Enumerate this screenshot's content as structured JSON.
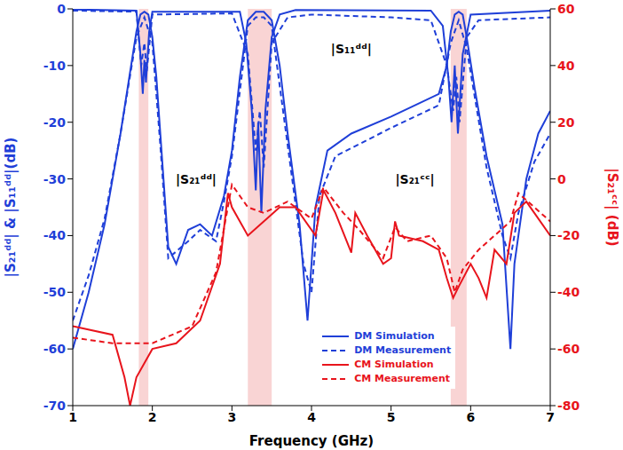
{
  "chart_data": {
    "type": "line",
    "x_label": "Frequency (GHz)",
    "y_label": "|S₂₁ᵈᵈ| & |S₁₁ᵈᵈ|(dB)",
    "y2_label": "|S₂₁ᶜᶜ| (dB)",
    "xlim": [
      1,
      7
    ],
    "xticks": [
      1,
      2,
      3,
      4,
      5,
      6,
      7
    ],
    "ylim": [
      -70,
      0
    ],
    "yticks": [
      -70,
      -60,
      -50,
      -40,
      -30,
      -20,
      -10,
      0
    ],
    "y2lim": [
      -80,
      60
    ],
    "y2ticks": [
      -80,
      -60,
      -40,
      -20,
      0,
      20,
      40,
      60
    ],
    "grid": false,
    "legend": "lower right",
    "bands": [
      [
        1.83,
        1.95
      ],
      [
        3.2,
        3.5
      ],
      [
        5.75,
        5.95
      ]
    ],
    "annotations": [
      {
        "text": "|S₂₁ᵈᵈ|",
        "x": 2.55,
        "y": -30
      },
      {
        "text": "|S₁₁ᵈᵈ|",
        "x": 4.5,
        "y": -7
      },
      {
        "text": "|S₂₁ᶜᶜ|",
        "x": 5.3,
        "y": -30
      }
    ],
    "series": [
      {
        "name": "DM Simulation",
        "color": "#1f3fd8",
        "line_style": "solid",
        "x": [
          1.0,
          1.2,
          1.4,
          1.5,
          1.6,
          1.7,
          1.8,
          1.85,
          1.9,
          1.95,
          2.0,
          2.05,
          2.1,
          2.2,
          2.3,
          2.45,
          2.6,
          2.75,
          2.9,
          3.0,
          3.1,
          3.2,
          3.3,
          3.4,
          3.5,
          3.6,
          3.7,
          3.85,
          3.95,
          4.05,
          4.2,
          4.5,
          5.0,
          5.3,
          5.6,
          5.7,
          5.75,
          5.8,
          5.85,
          5.9,
          5.95,
          6.05,
          6.2,
          6.4,
          6.5,
          6.55,
          6.7,
          6.85,
          7.0
        ],
        "values": [
          -60,
          -50,
          -38,
          -30,
          -22,
          -13,
          -4,
          -1,
          -0.5,
          -1,
          -5,
          -12,
          -22,
          -42,
          -45,
          -39,
          -38,
          -40,
          -33,
          -25,
          -12,
          -2,
          -0.5,
          -0.5,
          -2,
          -10,
          -22,
          -38,
          -55,
          -35,
          -25,
          -22,
          -19,
          -17,
          -15,
          -10,
          -4,
          -1,
          -0.5,
          -1,
          -5,
          -14,
          -26,
          -38,
          -60,
          -45,
          -30,
          -22,
          -18
        ]
      },
      {
        "name": "DM Measurement",
        "color": "#1f3fd8",
        "line_style": "dashed",
        "x": [
          1.0,
          1.2,
          1.4,
          1.6,
          1.8,
          1.9,
          2.0,
          2.1,
          2.2,
          2.45,
          2.6,
          2.8,
          2.9,
          3.0,
          3.2,
          3.3,
          3.4,
          3.5,
          3.7,
          3.9,
          4.0,
          4.1,
          4.3,
          5.0,
          5.6,
          5.75,
          5.85,
          5.95,
          6.2,
          6.4,
          6.5,
          6.6,
          6.8,
          7.0
        ],
        "values": [
          -55,
          -47,
          -37,
          -22,
          -5,
          -1.5,
          -6,
          -24,
          -44,
          -41,
          -39,
          -41,
          -34,
          -26,
          -3,
          -1.5,
          -1.5,
          -3,
          -24,
          -45,
          -50,
          -33,
          -26,
          -21,
          -17,
          -6,
          -2,
          -7,
          -28,
          -40,
          -44,
          -36,
          -27,
          -22
        ]
      },
      {
        "name": "DM Simulation",
        "color": "#1f3fd8",
        "line_style": "solid",
        "x": [
          1.0,
          1.8,
          1.85,
          1.88,
          1.9,
          1.92,
          1.96,
          2.0,
          3.1,
          3.18,
          3.25,
          3.3,
          3.33,
          3.37,
          3.42,
          3.5,
          3.6,
          3.8,
          5.5,
          5.65,
          5.72,
          5.76,
          5.8,
          5.84,
          5.9,
          6.0,
          7.0
        ],
        "values": [
          -0.1,
          -0.3,
          -8,
          -15,
          -9,
          -13,
          -4,
          -0.5,
          -0.5,
          -6,
          -18,
          -32,
          -20,
          -36,
          -18,
          -5,
          -1,
          -0.2,
          -0.3,
          -3,
          -12,
          -20,
          -10,
          -22,
          -8,
          -1,
          -0.3
        ]
      },
      {
        "name": "DM Measurement",
        "color": "#1f3fd8",
        "line_style": "dashed",
        "x": [
          1.0,
          1.8,
          1.86,
          1.9,
          1.93,
          2.0,
          3.0,
          3.2,
          3.3,
          3.35,
          3.4,
          3.5,
          3.7,
          4.0,
          5.0,
          5.5,
          5.7,
          5.78,
          5.82,
          5.86,
          5.95,
          6.1,
          7.0
        ],
        "values": [
          -0.3,
          -0.5,
          -10,
          -6,
          -11,
          -1,
          -0.8,
          -8,
          -25,
          -18,
          -28,
          -6,
          -1.5,
          -1,
          -1.5,
          -2,
          -10,
          -18,
          -12,
          -20,
          -5,
          -2,
          -1.5
        ]
      },
      {
        "name": "CM Simulation",
        "color": "#e8141c",
        "line_style": "solid",
        "axis": "y2",
        "x": [
          1.0,
          1.5,
          1.65,
          1.72,
          1.8,
          2.0,
          2.3,
          2.6,
          2.85,
          2.95,
          3.0,
          3.2,
          3.4,
          3.6,
          3.8,
          4.0,
          4.05,
          4.15,
          4.3,
          4.5,
          4.55,
          4.7,
          4.9,
          5.0,
          5.05,
          5.1,
          5.4,
          5.6,
          5.7,
          5.78,
          5.85,
          6.0,
          6.1,
          6.2,
          6.3,
          6.45,
          6.55,
          6.7,
          6.8,
          7.0
        ],
        "values": [
          -52,
          -55,
          -70,
          -80,
          -70,
          -60,
          -58,
          -50,
          -30,
          -5,
          -10,
          -20,
          -15,
          -10,
          -10,
          -18,
          -20,
          -4,
          -12,
          -26,
          -12,
          -20,
          -30,
          -28,
          -15,
          -20,
          -22,
          -25,
          -35,
          -42,
          -38,
          -30,
          -35,
          -42,
          -25,
          -30,
          -12,
          -8,
          -12,
          -20
        ]
      },
      {
        "name": "CM Measurement",
        "color": "#e8141c",
        "line_style": "dashed",
        "axis": "y2",
        "x": [
          1.0,
          1.5,
          2.0,
          2.5,
          2.8,
          3.0,
          3.2,
          3.4,
          3.7,
          4.0,
          4.15,
          4.4,
          4.6,
          4.9,
          5.05,
          5.2,
          5.5,
          5.7,
          5.8,
          5.9,
          6.1,
          6.3,
          6.5,
          6.6,
          6.8,
          7.0
        ],
        "values": [
          -56,
          -58,
          -58,
          -52,
          -33,
          -2,
          -10,
          -12,
          -8,
          -14,
          -3,
          -12,
          -18,
          -28,
          -17,
          -22,
          -20,
          -28,
          -40,
          -32,
          -25,
          -20,
          -15,
          -5,
          -10,
          -15
        ]
      }
    ]
  }
}
